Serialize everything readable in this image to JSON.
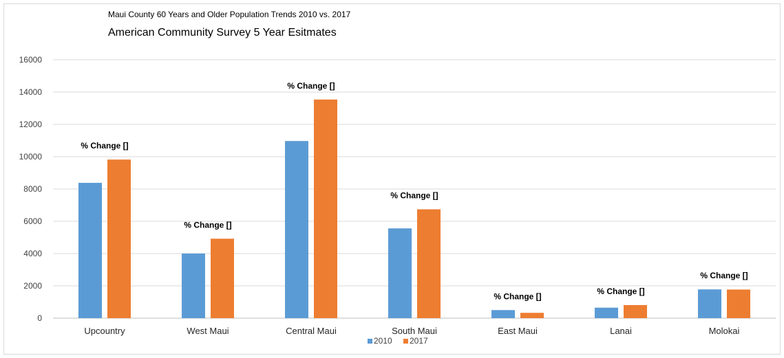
{
  "chart_data": {
    "type": "bar",
    "title": "Maui County 60 Years and Older Population Trends 2010 vs. 2017",
    "subtitle": "American Community Survey 5 Year Esitmates",
    "categories": [
      "Upcountry",
      "West Maui",
      "Central Maui",
      "South Maui",
      "East Maui",
      "Lanai",
      "Molokai"
    ],
    "series": [
      {
        "name": "2010",
        "values": [
          8380,
          4000,
          10970,
          5560,
          500,
          650,
          1780
        ],
        "color": "#5b9bd5"
      },
      {
        "name": "2017",
        "values": [
          9820,
          4920,
          13540,
          6740,
          330,
          810,
          1770
        ],
        "color": "#ed7d31"
      }
    ],
    "data_labels": [
      "% Change []",
      "% Change []",
      "% Change []",
      "% Change []",
      "% Change []",
      "% Change []",
      "% Change []"
    ],
    "ylim": [
      0,
      16000
    ],
    "yticks": [
      0,
      2000,
      4000,
      6000,
      8000,
      10000,
      12000,
      14000,
      16000
    ],
    "grid": true,
    "legend_position": "bottom"
  }
}
